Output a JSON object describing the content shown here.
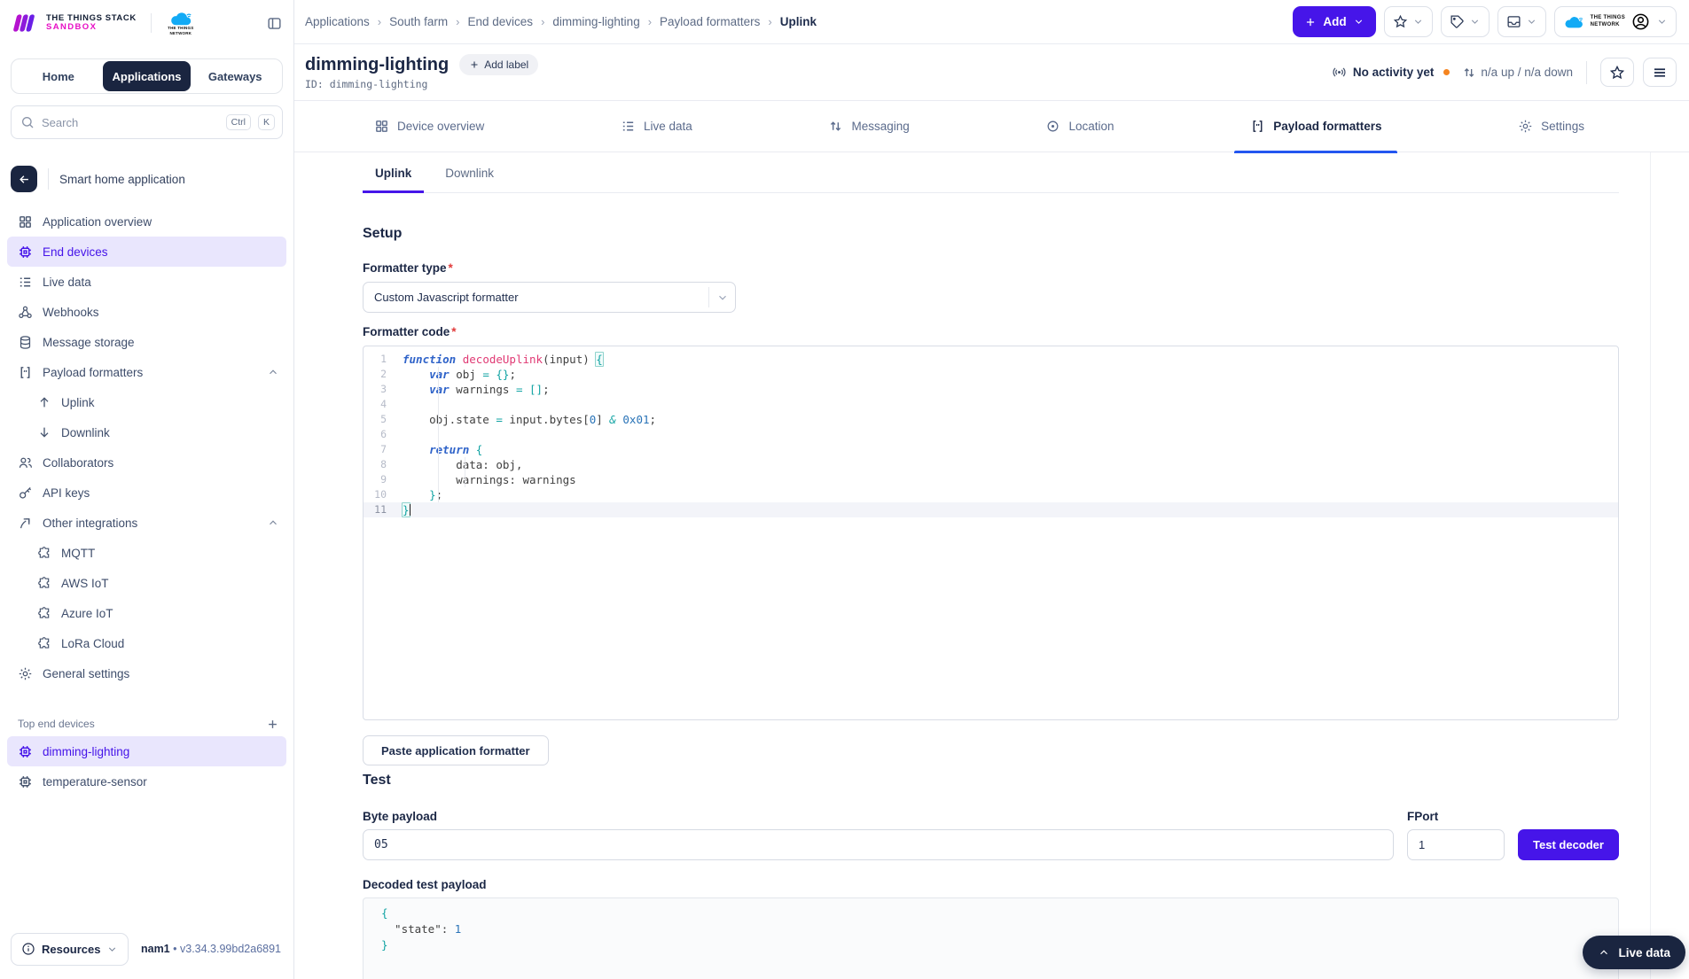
{
  "brand": {
    "product": "THE THINGS STACK",
    "env": "SANDBOX",
    "network_line1": "THE THINGS",
    "network_line2": "NETWORK"
  },
  "header_tabs": {
    "home": "Home",
    "applications": "Applications",
    "gateways": "Gateways"
  },
  "search": {
    "placeholder": "Search",
    "shortcut_mod": "Ctrl",
    "shortcut_key": "K"
  },
  "topnav": {
    "breadcrumbs": [
      "Applications",
      "South farm",
      "End devices",
      "dimming-lighting",
      "Payload formatters",
      "Uplink"
    ],
    "add_button": "Add"
  },
  "sidebar": {
    "app_name": "Smart home application",
    "items": [
      {
        "label": "Application overview"
      },
      {
        "label": "End devices",
        "active": true
      },
      {
        "label": "Live data"
      },
      {
        "label": "Webhooks"
      },
      {
        "label": "Message storage"
      },
      {
        "label": "Payload formatters",
        "expanded": true
      },
      {
        "label": "Uplink"
      },
      {
        "label": "Downlink"
      },
      {
        "label": "Collaborators"
      },
      {
        "label": "API keys"
      },
      {
        "label": "Other integrations",
        "expanded": true
      },
      {
        "label": "MQTT"
      },
      {
        "label": "AWS IoT"
      },
      {
        "label": "Azure IoT"
      },
      {
        "label": "LoRa Cloud"
      },
      {
        "label": "General settings"
      }
    ],
    "section_label": "Top end devices",
    "devices": [
      {
        "label": "dimming-lighting",
        "active": true
      },
      {
        "label": "temperature-sensor"
      }
    ],
    "footer": {
      "resources": "Resources",
      "cluster": "nam1",
      "separator": "•",
      "version": "v3.34.3.99bd2a6891"
    }
  },
  "device_header": {
    "title": "dimming-lighting",
    "add_label": "Add label",
    "id_line": "ID: dimming-lighting",
    "activity": "No activity yet",
    "traffic": "n/a up / n/a down"
  },
  "tabs": [
    {
      "label": "Device overview"
    },
    {
      "label": "Live data"
    },
    {
      "label": "Messaging"
    },
    {
      "label": "Location"
    },
    {
      "label": "Payload formatters",
      "active": true
    },
    {
      "label": "Settings"
    }
  ],
  "subtabs": [
    {
      "label": "Uplink",
      "active": true
    },
    {
      "label": "Downlink"
    }
  ],
  "setup": {
    "heading": "Setup",
    "formatter_type_label": "Formatter type",
    "required_mark": "*",
    "formatter_type_value": "Custom Javascript formatter",
    "formatter_code_label": "Formatter code"
  },
  "editor": {
    "lines": [
      {
        "tokens": [
          [
            "k",
            "function"
          ],
          [
            "p",
            " "
          ],
          [
            "d",
            "decodeUplink"
          ],
          [
            "p",
            "(input) "
          ],
          [
            "m",
            "{"
          ]
        ]
      },
      {
        "tokens": [
          [
            "p",
            "    "
          ],
          [
            "k",
            "var"
          ],
          [
            "p",
            " obj "
          ],
          [
            "o",
            "="
          ],
          [
            "p",
            " "
          ],
          [
            "b",
            "{}"
          ],
          [
            "p",
            ";"
          ]
        ]
      },
      {
        "tokens": [
          [
            "p",
            "    "
          ],
          [
            "k",
            "var"
          ],
          [
            "p",
            " warnings "
          ],
          [
            "o",
            "="
          ],
          [
            "p",
            " "
          ],
          [
            "b",
            "[]"
          ],
          [
            "p",
            ";"
          ]
        ]
      },
      {
        "tokens": []
      },
      {
        "tokens": [
          [
            "p",
            "    obj.state "
          ],
          [
            "o",
            "="
          ],
          [
            "p",
            " input.bytes["
          ],
          [
            "n",
            "0"
          ],
          [
            "p",
            "] "
          ],
          [
            "o",
            "&"
          ],
          [
            "p",
            " "
          ],
          [
            "n",
            "0x01"
          ],
          [
            "p",
            ";"
          ]
        ]
      },
      {
        "tokens": []
      },
      {
        "tokens": [
          [
            "p",
            "    "
          ],
          [
            "k",
            "return"
          ],
          [
            "p",
            " "
          ],
          [
            "b",
            "{"
          ]
        ]
      },
      {
        "tokens": [
          [
            "p",
            "        data: obj,"
          ]
        ]
      },
      {
        "tokens": [
          [
            "p",
            "        warnings: warnings"
          ]
        ]
      },
      {
        "tokens": [
          [
            "p",
            "    "
          ],
          [
            "b",
            "}"
          ],
          [
            "p",
            ";"
          ]
        ]
      },
      {
        "tokens": [
          [
            "m",
            "}"
          ]
        ],
        "active": true,
        "cursor": true
      }
    ]
  },
  "actions": {
    "paste": "Paste application formatter"
  },
  "test": {
    "heading": "Test",
    "byte_label": "Byte payload",
    "byte_value": "05",
    "fport_label": "FPort",
    "fport_value": "1",
    "button": "Test decoder",
    "decoded_label": "Decoded test payload",
    "decoded_lines": [
      {
        "tokens": [
          [
            "b",
            "{"
          ]
        ]
      },
      {
        "tokens": [
          [
            "p",
            "  \"state\": "
          ],
          [
            "n",
            "1"
          ]
        ]
      },
      {
        "tokens": [
          [
            "b",
            "}"
          ]
        ]
      }
    ]
  },
  "live_data_button": "Live data",
  "colors": {
    "primary": "#4615e9",
    "tab_active_underline": "#2356f0",
    "navy": "#1a2540",
    "activity_dot": "#f5841f",
    "active_item_bg": "#e9e6fd"
  }
}
